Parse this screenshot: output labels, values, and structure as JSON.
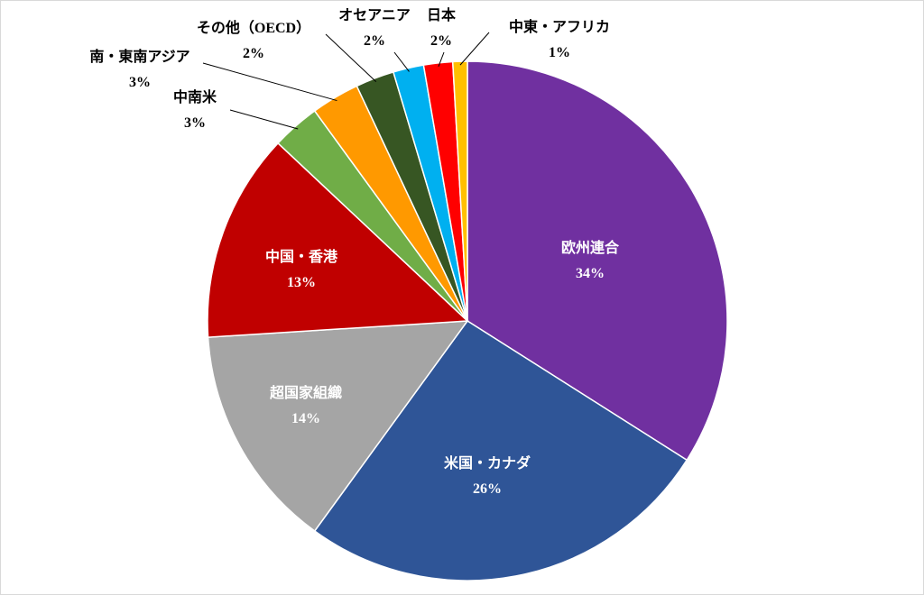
{
  "chart_data": {
    "type": "pie",
    "start_angle_deg": 0,
    "direction": "clockwise",
    "slices": [
      {
        "label": "欧州連合",
        "value": 34,
        "pct_label": "34%",
        "color": "#7030A0",
        "label_style": "inside"
      },
      {
        "label": "米国・カナダ",
        "value": 26,
        "pct_label": "26%",
        "color": "#2F5597",
        "label_style": "inside"
      },
      {
        "label": "超国家組織",
        "value": 14,
        "pct_label": "14%",
        "color": "#A5A5A5",
        "label_style": "inside"
      },
      {
        "label": "中国・香港",
        "value": 13,
        "pct_label": "13%",
        "color": "#C00000",
        "label_style": "inside"
      },
      {
        "label": "中南米",
        "value": 3,
        "pct_label": "3%",
        "color": "#70AD47",
        "label_style": "outside"
      },
      {
        "label": "南・東南アジア",
        "value": 3,
        "pct_label": "3%",
        "color": "#FF9900",
        "label_style": "outside"
      },
      {
        "label": "その他（OECD）",
        "value": 2.4,
        "pct_label": "2%",
        "color": "#375623",
        "label_style": "outside"
      },
      {
        "label": "オセアニア",
        "value": 1.9,
        "pct_label": "2%",
        "color": "#00B0F0",
        "label_style": "outside"
      },
      {
        "label": "日本",
        "value": 1.8,
        "pct_label": "2%",
        "color": "#FF0000",
        "label_style": "outside"
      },
      {
        "label": "中東・アフリカ",
        "value": 0.9,
        "pct_label": "1%",
        "color": "#FFC000",
        "label_style": "outside"
      }
    ]
  }
}
